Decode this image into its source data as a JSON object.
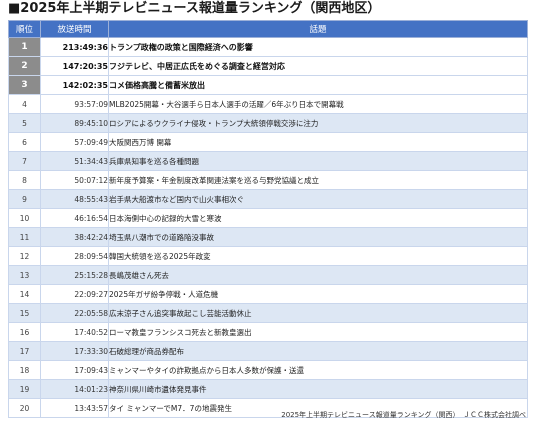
{
  "title": "■2025年上半期テレビニュース報道量ランキング（関西地区）",
  "headers": {
    "rank": "順位",
    "time": "放送時間",
    "topic": "話題"
  },
  "rows": [
    {
      "rank": "1",
      "time": "213:49:36",
      "topic": "トランプ政権の政策と国際経済への影響"
    },
    {
      "rank": "2",
      "time": "147:20:35",
      "topic": "フジテレビ、中居正広氏をめぐる調査と経営対応"
    },
    {
      "rank": "3",
      "time": "142:02:35",
      "topic": "コメ価格高騰と備蓄米放出"
    },
    {
      "rank": "4",
      "time": "93:57:09",
      "topic": "MLB2025開幕・大谷選手ら日本人選手の活躍／6年ぶり日本で開幕戦"
    },
    {
      "rank": "5",
      "time": "89:45:10",
      "topic": "ロシアによるウクライナ侵攻・トランプ大統領停戦交渉に注力"
    },
    {
      "rank": "6",
      "time": "57:09:49",
      "topic": "大阪関西万博 開幕"
    },
    {
      "rank": "7",
      "time": "51:34:43",
      "topic": "兵庫県知事を巡る各種問題"
    },
    {
      "rank": "8",
      "time": "50:07:12",
      "topic": "新年度予算案・年金制度改革関連法案を巡る与野党協議と成立"
    },
    {
      "rank": "9",
      "time": "48:55:43",
      "topic": "岩手県大船渡市など国内で山火事相次ぐ"
    },
    {
      "rank": "10",
      "time": "46:16:54",
      "topic": "日本海側中心の記録的大雪と寒波"
    },
    {
      "rank": "11",
      "time": "38:42:24",
      "topic": "埼玉県八潮市での道路陥没事故"
    },
    {
      "rank": "12",
      "time": "28:09:54",
      "topic": "韓国大統領を巡る2025年政変"
    },
    {
      "rank": "13",
      "time": "25:15:28",
      "topic": "長嶋茂雄さん死去"
    },
    {
      "rank": "14",
      "time": "22:09:27",
      "topic": "2025年ガザ紛争停戦・人道危機"
    },
    {
      "rank": "15",
      "time": "22:05:58",
      "topic": "広末涼子さん追突事故起こし芸能活動休止"
    },
    {
      "rank": "16",
      "time": "17:40:52",
      "topic": "ローマ教皇フランシスコ死去と新教皇選出"
    },
    {
      "rank": "17",
      "time": "17:33:30",
      "topic": "石破総理が商品券配布"
    },
    {
      "rank": "18",
      "time": "17:09:43",
      "topic": "ミャンマーやタイの詐欺拠点から日本人多数が保護・送還"
    },
    {
      "rank": "19",
      "time": "14:01:23",
      "topic": "神奈川県川崎市遺体発見事件"
    },
    {
      "rank": "20",
      "time": "13:43:57",
      "topic": "タイ ミャンマーでM7．7の地震発生"
    }
  ],
  "source": "2025年上半期テレビニュース報道量ランキング（関西）　ＪＣＣ株式会社調べ"
}
